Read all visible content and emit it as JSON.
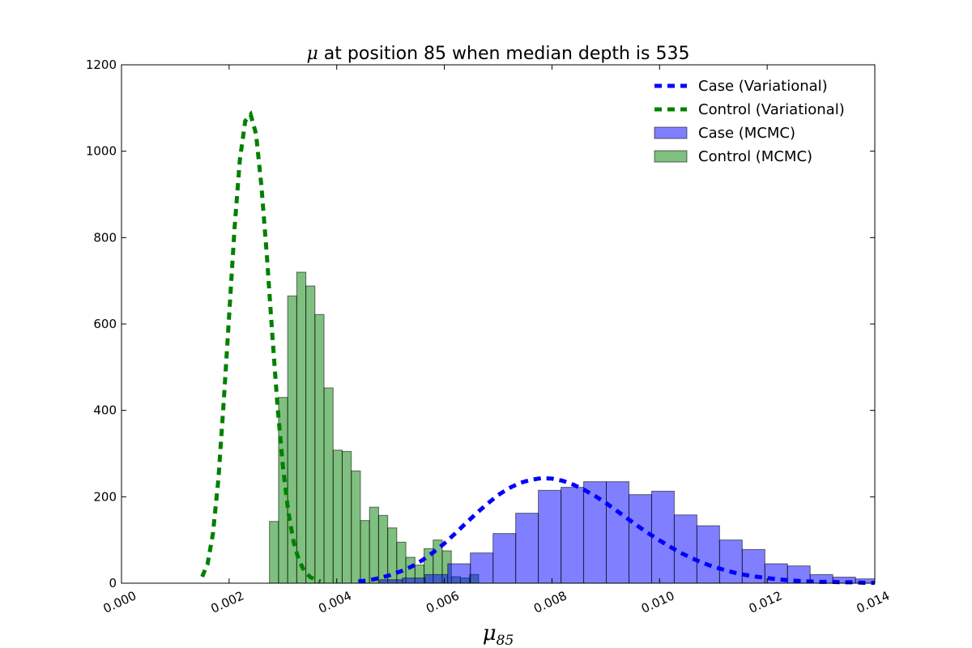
{
  "chart_data": {
    "type": "bar",
    "title_symbol": "μ",
    "title": " at position 85 when median depth is 535",
    "xlabel_symbol": "μ",
    "xlabel_sub": "85",
    "ylabel": "",
    "xlim": [
      0.0,
      0.014
    ],
    "ylim": [
      0,
      1200
    ],
    "x_ticks": [
      "0.000",
      "0.002",
      "0.004",
      "0.006",
      "0.008",
      "0.010",
      "0.012",
      "0.014"
    ],
    "y_ticks": [
      "0",
      "200",
      "400",
      "600",
      "800",
      "1000",
      "1200"
    ],
    "legend_position": "top-right",
    "legend": [
      {
        "label": "Case (Variational)",
        "kind": "line",
        "color": "#0000ff"
      },
      {
        "label": "Control (Variational)",
        "kind": "line",
        "color": "#008000"
      },
      {
        "label": "Case (MCMC)",
        "kind": "patch",
        "color": "#0000ff"
      },
      {
        "label": "Control (MCMC)",
        "kind": "patch",
        "color": "#008000"
      }
    ],
    "histograms": [
      {
        "name": "Control (MCMC)",
        "color": "#008000",
        "bin_start": 0.00275,
        "bin_width": 0.000169,
        "values": [
          143,
          430,
          665,
          720,
          688,
          622,
          452,
          308,
          305,
          260,
          145,
          176,
          157,
          128,
          95,
          60,
          42,
          80,
          100,
          75,
          15,
          12,
          20
        ]
      },
      {
        "name": "Case (MCMC)",
        "color": "#0000ff",
        "bin_start": 0.0048,
        "bin_width": 0.000421,
        "values": [
          8,
          12,
          20,
          45,
          70,
          115,
          162,
          215,
          222,
          235,
          235,
          205,
          213,
          158,
          133,
          100,
          78,
          45,
          40,
          20,
          14,
          10
        ]
      }
    ],
    "series": [
      {
        "name": "Case (Variational)",
        "color": "#0000ff",
        "style": "dashed",
        "x": [
          0.0044,
          0.0046,
          0.0048,
          0.005,
          0.0052,
          0.0054,
          0.0056,
          0.0058,
          0.006,
          0.0062,
          0.0064,
          0.0066,
          0.0068,
          0.007,
          0.0072,
          0.0074,
          0.0076,
          0.0078,
          0.008,
          0.0082,
          0.0084,
          0.0086,
          0.0088,
          0.009,
          0.0092,
          0.0094,
          0.0096,
          0.0098,
          0.01,
          0.0102,
          0.0104,
          0.0106,
          0.0108,
          0.011,
          0.0112,
          0.0114,
          0.0116,
          0.0118,
          0.012,
          0.0122,
          0.0124,
          0.0126,
          0.0128,
          0.013,
          0.0132,
          0.0134,
          0.0136,
          0.0138,
          0.014
        ],
        "y": [
          4,
          7,
          12,
          19,
          28,
          39,
          54,
          72,
          92,
          115,
          139,
          162,
          184,
          204,
          220,
          232,
          239,
          243,
          242,
          237,
          228,
          216,
          202,
          186,
          168,
          150,
          132,
          115,
          99,
          84,
          70,
          58,
          47,
          38,
          31,
          24,
          19,
          15,
          12,
          9,
          7,
          5,
          4,
          3,
          3,
          2,
          2,
          1,
          1
        ]
      },
      {
        "name": "Control (Variational)",
        "color": "#008000",
        "style": "dashed",
        "x": [
          0.0015,
          0.0016,
          0.0017,
          0.0018,
          0.0019,
          0.002,
          0.0021,
          0.0022,
          0.0023,
          0.0024,
          0.0025,
          0.0026,
          0.0027,
          0.0028,
          0.0029,
          0.003,
          0.0031,
          0.0032,
          0.0033,
          0.0034,
          0.0035,
          0.0036,
          0.0037
        ],
        "y": [
          15,
          45,
          115,
          240,
          420,
          620,
          820,
          980,
          1070,
          1085,
          1040,
          920,
          760,
          580,
          410,
          270,
          165,
          95,
          52,
          28,
          15,
          8,
          4
        ]
      }
    ]
  }
}
